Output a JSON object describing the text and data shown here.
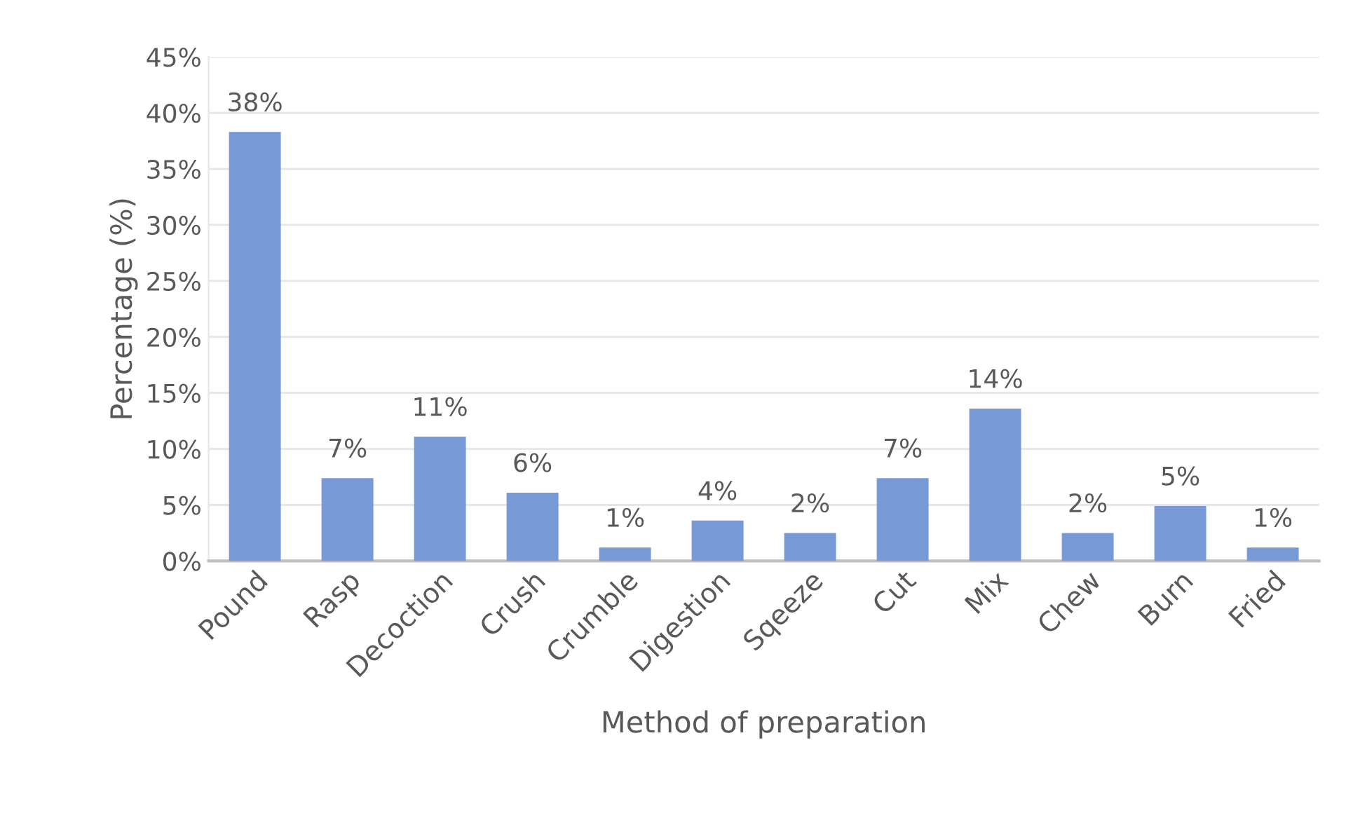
{
  "chart_data": {
    "type": "bar",
    "xlabel": "Method of preparation",
    "ylabel": "Percentage (%)",
    "categories": [
      "Pound",
      "Rasp",
      "Decoction",
      "Crush",
      "Crumble",
      "Digestion",
      "Sqeeze",
      "Cut",
      "Mix",
      "Chew",
      "Burn",
      "Fried"
    ],
    "values": [
      38.3,
      7.4,
      11.1,
      6.1,
      1.2,
      3.6,
      2.5,
      7.4,
      13.6,
      2.5,
      4.9,
      1.2
    ],
    "value_labels": [
      "38%",
      "7%",
      "11%",
      "6%",
      "1%",
      "4%",
      "2%",
      "7%",
      "14%",
      "2%",
      "5%",
      "1%"
    ],
    "color": "#7799d6",
    "ylim": [
      0,
      45
    ],
    "yticks": [
      {
        "value": 0,
        "label": "0%"
      },
      {
        "value": 5,
        "label": "5%"
      },
      {
        "value": 10,
        "label": "10%"
      },
      {
        "value": 15,
        "label": "15%"
      },
      {
        "value": 20,
        "label": "20%"
      },
      {
        "value": 25,
        "label": "25%"
      },
      {
        "value": 30,
        "label": "30%"
      },
      {
        "value": 35,
        "label": "35%"
      },
      {
        "value": 40,
        "label": "40%"
      },
      {
        "value": 45,
        "label": "45%"
      }
    ],
    "grid": "y"
  }
}
